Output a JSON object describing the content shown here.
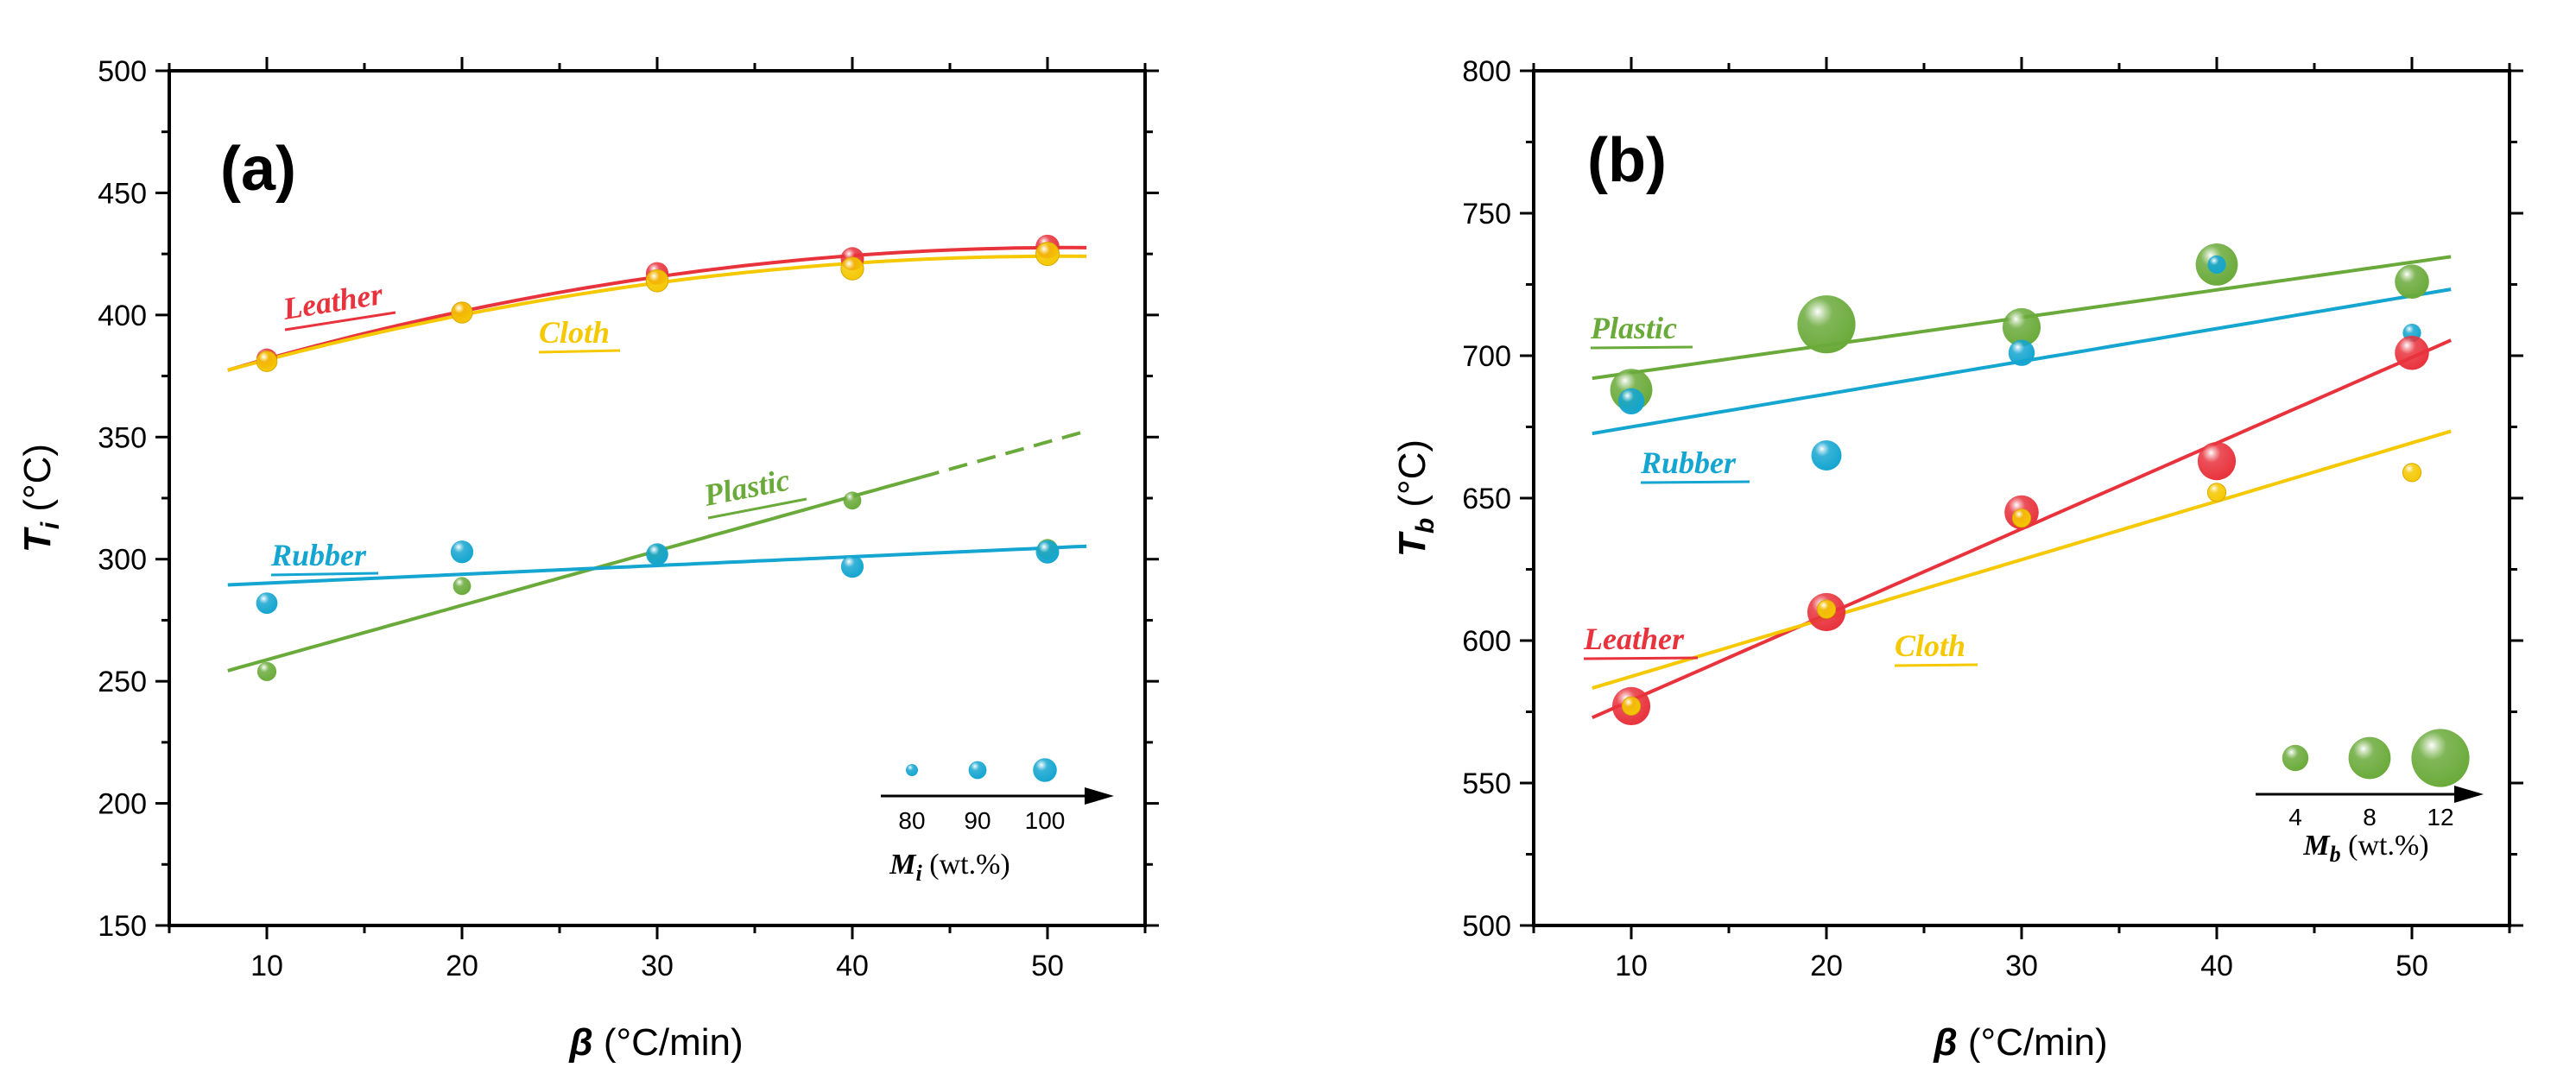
{
  "colors": {
    "Leather": "#e8323c",
    "Cloth": "#f5c800",
    "Plastic": "#6aaa3a",
    "Rubber": "#14a5d0"
  },
  "chart_data": [
    {
      "type": "scatter",
      "panel_label": "(a)",
      "xlabel_symbol": "β",
      "xlabel_unit": " (°C/min)",
      "ylabel_symbol": "T",
      "ylabel_sub": "i",
      "ylabel_unit": " (°C)",
      "xlim": [
        5,
        55
      ],
      "ylim": [
        150,
        500
      ],
      "xticks": [
        10,
        20,
        30,
        40,
        50
      ],
      "yticks": [
        150,
        200,
        250,
        300,
        350,
        400,
        450,
        500
      ],
      "x": [
        10,
        20,
        30,
        40,
        50
      ],
      "series": [
        {
          "name": "Leather",
          "label": "Leather",
          "values": [
            382,
            401,
            417,
            423,
            428
          ],
          "sizes": [
            95,
            96,
            98,
            99,
            100
          ],
          "fit": "poly2",
          "fit_range": [
            8,
            52
          ]
        },
        {
          "name": "Cloth",
          "label": "Cloth",
          "values": [
            381,
            401,
            414,
            419,
            425
          ],
          "sizes": [
            94,
            95,
            97,
            98,
            99
          ],
          "fit": "poly2",
          "fit_range": [
            8,
            52
          ]
        },
        {
          "name": "Plastic",
          "label": "Plastic",
          "values": [
            254,
            289,
            302,
            324,
            304
          ],
          "sizes": [
            92,
            90,
            93,
            90,
            95
          ],
          "fit": "linear",
          "fit_range": [
            8,
            43.5
          ],
          "fit_points": [
            0,
            1,
            2,
            3
          ],
          "extrapolate_to": 52
        },
        {
          "name": "Rubber",
          "label": "Rubber",
          "values": [
            282,
            303,
            302,
            297,
            303
          ],
          "sizes": [
            96,
            98,
            97,
            98,
            99
          ],
          "fit": "linear",
          "fit_range": [
            8,
            52
          ]
        }
      ],
      "size_legend": {
        "ticks": [
          "80",
          "90",
          "100"
        ],
        "values": [
          80,
          90,
          100
        ],
        "color_series": "Rubber",
        "title_symbol": "M",
        "title_sub": "i",
        "title_unit": " (wt.%)"
      }
    },
    {
      "type": "scatter",
      "panel_label": "(b)",
      "xlabel_symbol": "β",
      "xlabel_unit": " (°C/min)",
      "ylabel_symbol": "T",
      "ylabel_sub": "b",
      "ylabel_unit": " (°C)",
      "xlim": [
        5,
        55
      ],
      "ylim": [
        500,
        800
      ],
      "xticks": [
        10,
        20,
        30,
        40,
        50
      ],
      "yticks": [
        500,
        550,
        600,
        650,
        700,
        750,
        800
      ],
      "x": [
        10,
        20,
        30,
        40,
        50
      ],
      "series": [
        {
          "name": "Plastic",
          "label": "Plastic",
          "values": [
            688,
            711,
            710,
            732,
            726
          ],
          "sizes": [
            8,
            12,
            7,
            8,
            6
          ],
          "fit": "linear",
          "fit_range": [
            8,
            52
          ]
        },
        {
          "name": "Rubber",
          "label": "Rubber",
          "values": [
            684,
            665,
            701,
            732,
            708
          ],
          "sizes": [
            4,
            5,
            4,
            2,
            2
          ],
          "fit": "linear",
          "fit_range": [
            8,
            52
          ]
        },
        {
          "name": "Leather",
          "label": "Leather",
          "values": [
            577,
            610,
            645,
            663,
            701
          ],
          "sizes": [
            7,
            7,
            6,
            7,
            6
          ],
          "fit": "linear",
          "fit_range": [
            8,
            52
          ]
        },
        {
          "name": "Cloth",
          "label": "Cloth",
          "values": [
            577,
            611,
            643,
            652,
            659
          ],
          "sizes": [
            2,
            2,
            2,
            2,
            2
          ],
          "fit": "linear",
          "fit_range": [
            8,
            52
          ]
        }
      ],
      "size_legend": {
        "ticks": [
          "4",
          "8",
          "12"
        ],
        "values": [
          4,
          8,
          12
        ],
        "color_series": "Plastic",
        "title_symbol": "M",
        "title_sub": "b",
        "title_unit": " (wt.%)"
      }
    }
  ]
}
